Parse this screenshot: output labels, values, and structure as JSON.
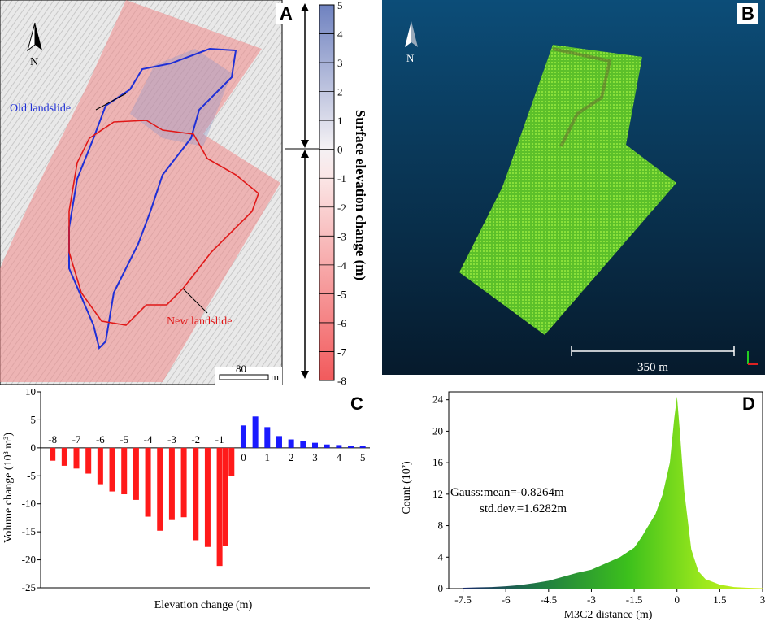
{
  "panels": {
    "a": {
      "label": "A",
      "north": "N",
      "old_landslide_label": "Old landslide",
      "new_landslide_label": "New landslide",
      "scale_value": "80",
      "scale_unit": "m",
      "colorbar_title": "Surface elevation change (m)",
      "colorbar_ticks": [
        "5",
        "4",
        "3",
        "2",
        "1",
        "0",
        "-1",
        "-2",
        "-3",
        "-4",
        "-5",
        "-6",
        "-7",
        "-8"
      ],
      "colors": {
        "uplift": "#7f8fc4",
        "subsidence": "#f05a5a",
        "old_outline": "#1f2fd6",
        "new_outline": "#e01818"
      }
    },
    "b": {
      "label": "B",
      "north": "N",
      "scale_label": "350 m",
      "colors": {
        "background_top": "#0c4d78",
        "background_bottom": "#061a2c",
        "points": "#6ed42a"
      }
    },
    "c": {
      "label": "C"
    },
    "d": {
      "label": "D"
    }
  },
  "chart_data": [
    {
      "type": "bar",
      "panel": "C",
      "title": "",
      "xlabel": "Elevation change (m)",
      "ylabel": "Volume change (10³ m³)",
      "ylim": [
        -25,
        10
      ],
      "yticks": [
        "10",
        "5",
        "0",
        "-5",
        "-10",
        "-15",
        "-20",
        "-25"
      ],
      "category_labels": [
        "-8",
        "-7",
        "-6",
        "-5",
        "-4",
        "-3",
        "-2",
        "-1",
        "0",
        "1",
        "2",
        "3",
        "4",
        "5"
      ],
      "series": [
        {
          "name": "negative",
          "color": "#ff1a1a",
          "x": [
            -8,
            -7.5,
            -7,
            -6.5,
            -6,
            -5.5,
            -5,
            -4.5,
            -4,
            -3.5,
            -3,
            -2.5,
            -2,
            -1.5,
            -1
          ],
          "values": [
            -2.3,
            -3.2,
            -3.7,
            -4.6,
            -6.5,
            -7.8,
            -8.3,
            -9.3,
            -12.3,
            -14.8,
            -12.9,
            -12.4,
            -16.5,
            -17.7,
            -21.1
          ]
        },
        {
          "name": "extra_negative",
          "color": "#ff1a1a",
          "x": [
            -0.75,
            -0.5
          ],
          "values": [
            -17.5,
            -5.0
          ]
        },
        {
          "name": "positive",
          "color": "#1a1aff",
          "x": [
            0,
            0.5,
            1,
            1.5,
            2,
            2.5,
            3,
            3.5,
            4,
            4.5,
            5
          ],
          "values": [
            4.0,
            5.6,
            3.7,
            2.1,
            1.5,
            1.2,
            0.9,
            0.6,
            0.5,
            0.35,
            0.35
          ]
        }
      ]
    },
    {
      "type": "bar",
      "panel": "D",
      "title": "",
      "xlabel": "M3C2 distance (m)",
      "ylabel": "Count (10²)",
      "xlim": [
        -8,
        3
      ],
      "ylim": [
        0,
        25
      ],
      "xticks": [
        "-7.5",
        "-6",
        "-4.5",
        "-3",
        "-1.5",
        "0",
        "1.5",
        "3"
      ],
      "yticks": [
        "0",
        "4",
        "8",
        "12",
        "16",
        "20",
        "24"
      ],
      "gauss_mean_label": "Gauss:mean=-0.8264m",
      "gauss_std_label": "std.dev.=1.6282m",
      "histogram": {
        "x": [
          -7.5,
          -7,
          -6.5,
          -6,
          -5.5,
          -5,
          -4.5,
          -4,
          -3.5,
          -3,
          -2.5,
          -2,
          -1.5,
          -1.25,
          -1,
          -0.75,
          -0.5,
          -0.25,
          -0.1,
          0,
          0.1,
          0.25,
          0.5,
          0.75,
          1,
          1.5,
          2,
          2.5,
          3
        ],
        "values": [
          0.1,
          0.15,
          0.2,
          0.3,
          0.45,
          0.7,
          1.0,
          1.5,
          2.0,
          2.4,
          3.2,
          4.0,
          5.2,
          6.5,
          8.0,
          9.5,
          12.0,
          16.0,
          21.5,
          24.4,
          20.0,
          12.5,
          5.0,
          2.2,
          1.2,
          0.5,
          0.2,
          0.1,
          0.05
        ]
      }
    }
  ]
}
